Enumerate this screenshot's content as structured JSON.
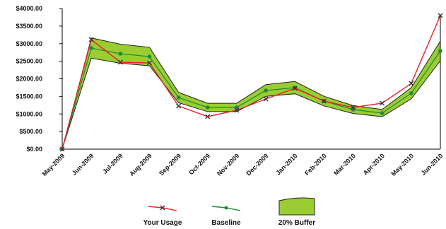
{
  "chart_data": {
    "type": "line",
    "categories": [
      "May-2009",
      "Jun-2009",
      "Jul-2009",
      "Aug-2009",
      "Sep-2009",
      "Oct-2009",
      "Nov-2009",
      "Dec-2009",
      "Jan-2010",
      "Feb-2010",
      "Mar-2010",
      "Apr-2010",
      "May-2010",
      "Jun-2010"
    ],
    "series": [
      {
        "name": "Your Usage",
        "color": "#e8202a",
        "values": [
          0,
          3116,
          2472,
          2452,
          1226,
          925,
          1106,
          1427,
          1729,
          1367,
          1186,
          1307,
          1869,
          3799
        ]
      },
      {
        "name": "Baseline",
        "color": "#1f8a3a",
        "values": [
          0,
          2874,
          2714,
          2633,
          1467,
          1186,
          1186,
          1668,
          1749,
          1367,
          1126,
          1025,
          1588,
          2794
        ]
      }
    ],
    "band": {
      "name": "20% Buffer",
      "color": "#9acd32",
      "high": [
        0,
        3161,
        2985,
        2896,
        1614,
        1305,
        1305,
        1835,
        1924,
        1504,
        1239,
        1128,
        1747,
        3073
      ],
      "low": [
        0,
        2587,
        2443,
        2370,
        1320,
        1067,
        1067,
        1501,
        1574,
        1230,
        1013,
        923,
        1429,
        2515
      ]
    },
    "ylim": [
      0,
      4000
    ],
    "yticks": [
      {
        "value": 0,
        "label": "$0.00"
      },
      {
        "value": 500,
        "label": "$500.00"
      },
      {
        "value": 1000,
        "label": "$1000.00"
      },
      {
        "value": 1500,
        "label": "$1500.00"
      },
      {
        "value": 2000,
        "label": "$2000.00"
      },
      {
        "value": 2500,
        "label": "$2500.00"
      },
      {
        "value": 3000,
        "label": "$3000.00"
      },
      {
        "value": 3500,
        "label": "$3500.00"
      },
      {
        "value": 4000,
        "label": "$4000.00"
      }
    ]
  }
}
